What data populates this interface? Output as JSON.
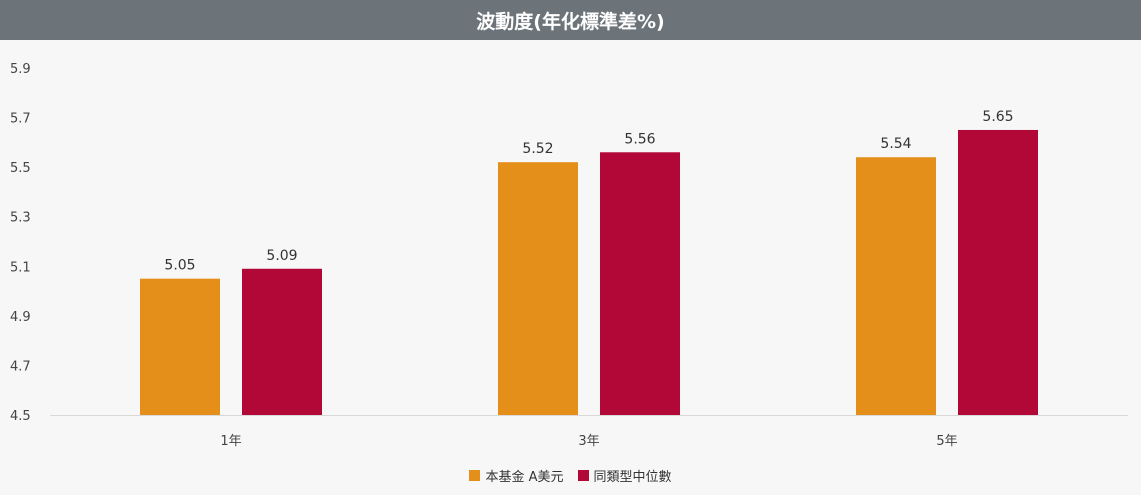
{
  "title": "波動度(年化標準差%)",
  "colors": {
    "fund": "#e48f1a",
    "median": "#b20838",
    "header_bg": "#6c7479"
  },
  "chart_data": {
    "type": "bar",
    "title": "波動度(年化標準差%)",
    "categories": [
      "1年",
      "3年",
      "5年"
    ],
    "series": [
      {
        "name": "本基金 A美元",
        "values": [
          5.05,
          5.52,
          5.54
        ]
      },
      {
        "name": "同類型中位數",
        "values": [
          5.09,
          5.56,
          5.65
        ]
      }
    ],
    "yticks": [
      "5.9",
      "5.7",
      "5.5",
      "5.3",
      "5.1",
      "4.9",
      "4.7",
      "4.5"
    ],
    "ylim": [
      4.5,
      5.9
    ],
    "legend_position": "bottom",
    "grid": false
  },
  "legend": [
    {
      "label": "本基金 A美元"
    },
    {
      "label": "同類型中位數"
    }
  ]
}
